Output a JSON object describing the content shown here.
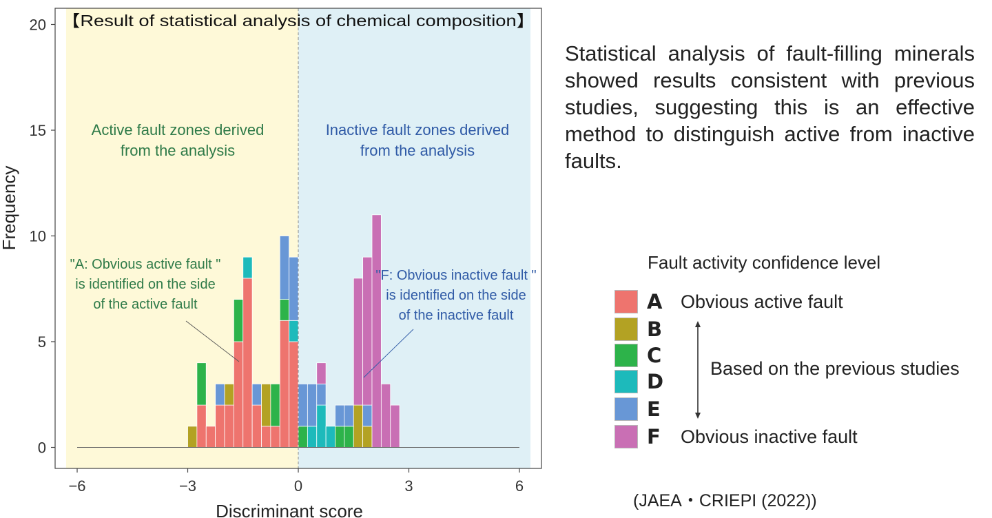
{
  "chart_data": {
    "type": "bar",
    "stacked": true,
    "title": "【Result of statistical analysis of chemical composition】",
    "xlabel": "Discriminant score",
    "ylabel": "Frequency",
    "xlim": [
      -6,
      6
    ],
    "ylim": [
      0,
      20
    ],
    "xticks": [
      -6,
      -3,
      0,
      3,
      6
    ],
    "yticks": [
      0,
      5,
      10,
      15,
      20
    ],
    "bin_width": 0.25,
    "bins_start": [
      -3.0,
      -2.75,
      -2.5,
      -2.25,
      -2.0,
      -1.75,
      -1.5,
      -1.25,
      -1.0,
      -0.75,
      -0.5,
      -0.25,
      0.0,
      0.25,
      0.5,
      0.75,
      1.0,
      1.25,
      1.5,
      1.75,
      2.0,
      2.25,
      2.5
    ],
    "series": [
      {
        "name": "A",
        "color": "#ee746e",
        "values": [
          0,
          2,
          1,
          2,
          2,
          5,
          8,
          2,
          1,
          1,
          6,
          5,
          0,
          0,
          0,
          0,
          0,
          0,
          0,
          0,
          0,
          0,
          0
        ]
      },
      {
        "name": "B",
        "color": "#b3a223",
        "values": [
          1,
          0,
          0,
          0,
          1,
          0,
          0,
          0,
          2,
          0,
          0,
          0,
          0,
          0,
          0,
          0,
          0,
          0,
          2,
          1,
          0,
          0,
          0
        ]
      },
      {
        "name": "C",
        "color": "#2db34a",
        "values": [
          0,
          2,
          0,
          0,
          0,
          2,
          0,
          0,
          0,
          2,
          1,
          0,
          1,
          0,
          0,
          0,
          1,
          1,
          0,
          0,
          0,
          0,
          0
        ]
      },
      {
        "name": "D",
        "color": "#1dbabb",
        "values": [
          0,
          0,
          0,
          0,
          0,
          0,
          1,
          0,
          0,
          0,
          0,
          1,
          0,
          1,
          2,
          1,
          0,
          0,
          0,
          0,
          0,
          0,
          0
        ]
      },
      {
        "name": "E",
        "color": "#6897d6",
        "values": [
          0,
          0,
          0,
          1,
          0,
          0,
          0,
          1,
          0,
          0,
          3,
          3,
          2,
          2,
          1,
          0,
          1,
          1,
          0,
          1,
          0,
          0,
          0
        ]
      },
      {
        "name": "F",
        "color": "#c96fb4",
        "values": [
          0,
          0,
          0,
          0,
          0,
          0,
          0,
          0,
          0,
          0,
          0,
          0,
          0,
          0,
          1,
          0,
          0,
          0,
          6,
          7,
          11,
          3,
          2
        ]
      }
    ],
    "regions": [
      {
        "label": "Active fault zones derived from the analysis",
        "x_range": [
          -6.3,
          0
        ],
        "color": "#fef9d8",
        "text_color": "#2e7a48"
      },
      {
        "label": "Inactive fault zones  derived from the analysis",
        "x_range": [
          0,
          6.3
        ],
        "color": "#dff0f6",
        "text_color": "#2f5aa6"
      }
    ],
    "annotations": [
      {
        "lines": [
          "\"A: Obvious active fault \"",
          "is identified on the side",
          "of the active fault"
        ],
        "color": "#2e7a48"
      },
      {
        "lines": [
          "\"F: Obvious inactive fault \"",
          "is identified on the side",
          "of the inactive fault"
        ],
        "color": "#2f5aa6"
      }
    ]
  },
  "description": "Statistical analysis of fault-filling minerals showed results consistent with previous studies, suggesting this is an effective method to distinguish active from inactive faults.",
  "legend": {
    "title": "Fault activity confidence level",
    "items": [
      {
        "letter": "A",
        "label": "Obvious active fault",
        "color": "#ee746e"
      },
      {
        "letter": "B",
        "label": "",
        "color": "#b3a223"
      },
      {
        "letter": "C",
        "label": "",
        "color": "#2db34a"
      },
      {
        "letter": "D",
        "label": "",
        "color": "#1dbabb"
      },
      {
        "letter": "E",
        "label": "",
        "color": "#6897d6"
      },
      {
        "letter": "F",
        "label": "Obvious inactive fault",
        "color": "#c96fb4"
      }
    ],
    "middle_note": "Based on the previous studies"
  },
  "source": "(JAEA・CRIEPI (2022))"
}
